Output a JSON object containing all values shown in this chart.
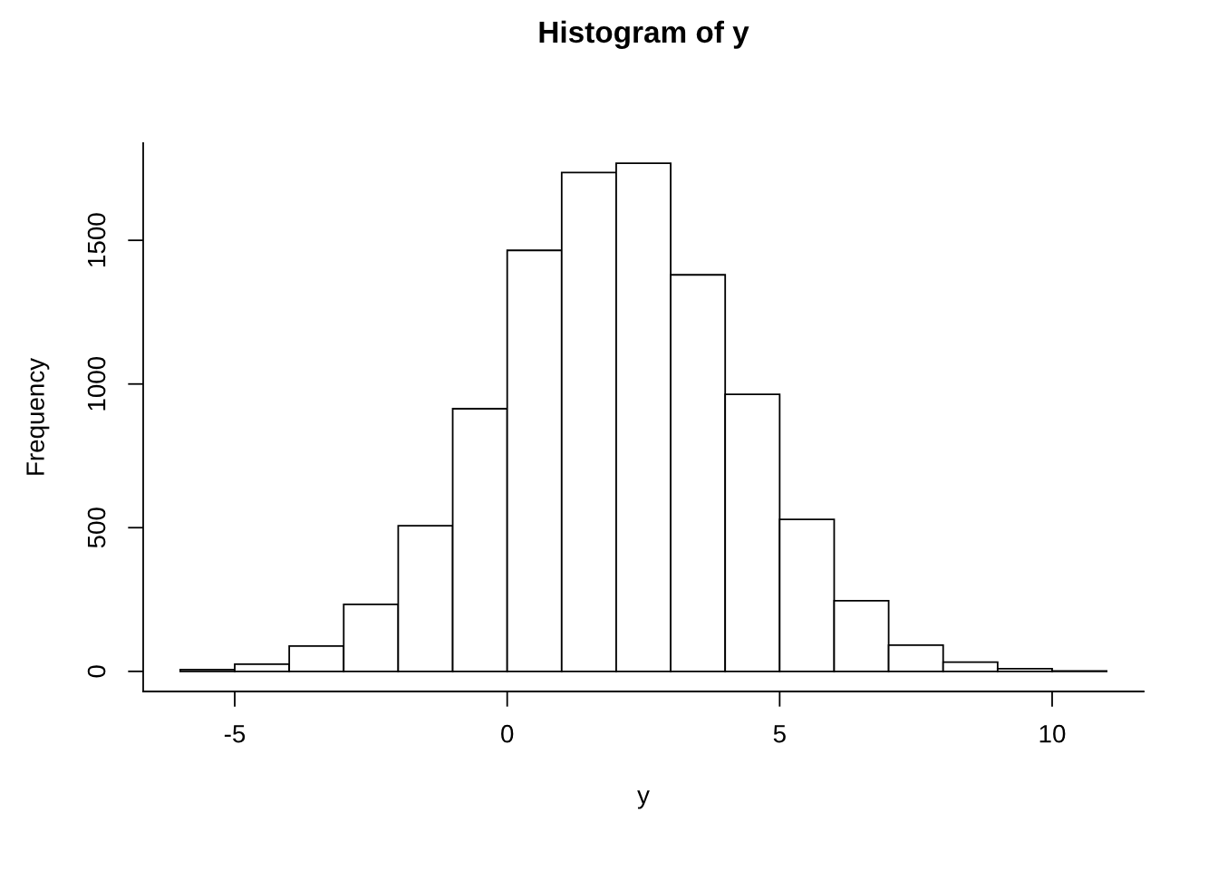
{
  "chart_data": {
    "type": "histogram",
    "title": "Histogram of y",
    "xlabel": "y",
    "ylabel": "Frequency",
    "bins": [
      -6,
      -5,
      -4,
      -3,
      -2,
      -1,
      0,
      1,
      2,
      3,
      4,
      5,
      6,
      7,
      8,
      9,
      10,
      11
    ],
    "values": [
      6,
      25,
      88,
      233,
      507,
      914,
      1465,
      1736,
      1768,
      1380,
      964,
      529,
      246,
      91,
      32,
      9,
      1
    ],
    "color": "#ffffff",
    "xlim": [
      -6.68,
      11.68
    ],
    "ylim": [
      -70,
      1838
    ],
    "xticks": [
      {
        "value": -5,
        "label": "-5"
      },
      0,
      5,
      10
    ],
    "yticks": [
      0,
      500,
      1000,
      1500
    ],
    "grid": false
  }
}
